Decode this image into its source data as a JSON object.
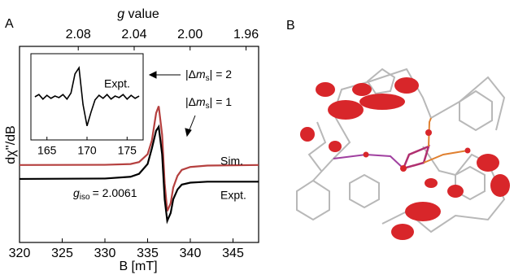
{
  "panel_labels": [
    "A",
    "B"
  ],
  "chart_data": [
    {
      "type": "line",
      "xlabel": "B [mT]",
      "ylabel": "dχ''/dB",
      "x2label": {
        "symbol": "g",
        "text": "value"
      },
      "xlim": [
        320,
        348
      ],
      "xticks": [
        320,
        325,
        330,
        335,
        340,
        345
      ],
      "x2lim": [
        2.122,
        1.951
      ],
      "x2ticks": [
        2.08,
        2.04,
        {
          "value": 2.0,
          "label": "2.00"
        },
        1.96
      ],
      "ylim": [
        0,
        100
      ],
      "x": [
        320,
        330,
        333,
        334,
        335,
        335.5,
        336,
        336.3,
        336.7,
        337,
        337.3,
        337.7,
        338,
        338.5,
        339,
        340,
        342,
        348
      ],
      "series": [
        {
          "name": "Sim.",
          "color": "#b5403f",
          "values": [
            39.5,
            39.6,
            40,
            41,
            45,
            52,
            66,
            69.5,
            55,
            30,
            16,
            20,
            28,
            34,
            37,
            38.5,
            39.2,
            39.5
          ]
        },
        {
          "name": "Expt.",
          "color": "#000000",
          "values": [
            32.4,
            32.6,
            33.5,
            35,
            40,
            48,
            57,
            59,
            45,
            22,
            11,
            15,
            22,
            27,
            29.5,
            30.5,
            31,
            31
          ]
        }
      ],
      "giso": {
        "symbol": "g",
        "subscript": "iso",
        "text": "= 2.0061"
      },
      "transitions": [
        {
          "prefix": "|Δ",
          "symbol": "m",
          "subscript": "s",
          "suffix": "| = 2"
        },
        {
          "prefix": "|Δ",
          "symbol": "m",
          "subscript": "s",
          "suffix": "| = 1"
        }
      ]
    },
    {
      "type": "line",
      "xlim": [
        163,
        177
      ],
      "xticks": [
        165,
        170,
        175
      ],
      "ylim": [
        0,
        100
      ],
      "x": [
        163.5,
        164,
        164.5,
        165,
        165.5,
        166,
        166.5,
        167,
        167.5,
        168,
        168.5,
        169,
        169.5,
        170,
        170.5,
        171,
        171.5,
        172,
        172.5,
        173,
        173.5,
        174,
        174.5,
        175,
        175.5,
        176,
        176.5
      ],
      "series": [
        {
          "name": "Expt.",
          "color": "#000000",
          "values": [
            50,
            53,
            47,
            52,
            48,
            51,
            49,
            53,
            47,
            55,
            80,
            88,
            40,
            12,
            30,
            46,
            52,
            48,
            53,
            47,
            51,
            49,
            53,
            47,
            52,
            48,
            51
          ]
        }
      ]
    }
  ]
}
